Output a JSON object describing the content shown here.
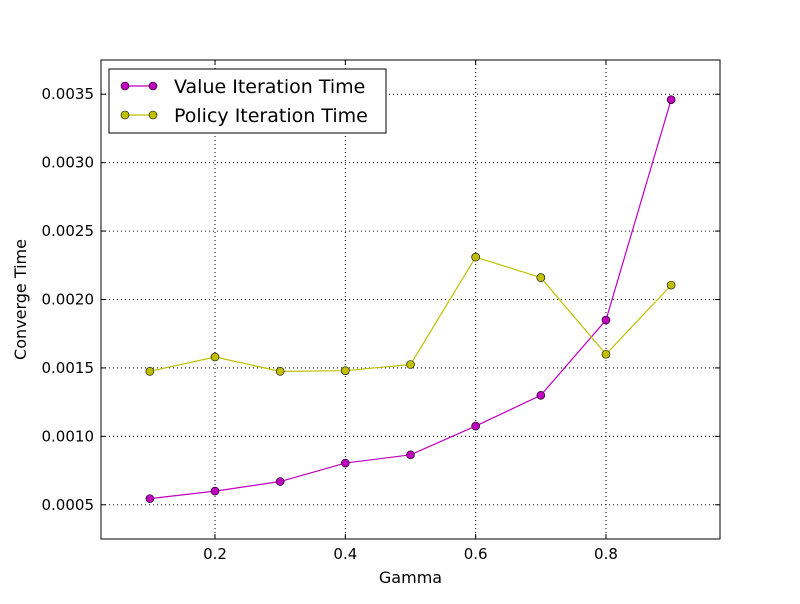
{
  "chart_data": {
    "type": "line",
    "title": "",
    "xlabel": "Gamma",
    "ylabel": "Converge Time",
    "xlim": [
      0.025,
      0.975
    ],
    "ylim": [
      0.00025,
      0.00375
    ],
    "x_ticks": [
      0.2,
      0.4,
      0.6,
      0.8
    ],
    "x_tick_labels": [
      "0.2",
      "0.4",
      "0.6",
      "0.8"
    ],
    "y_ticks": [
      0.0005,
      0.001,
      0.0015,
      0.002,
      0.0025,
      0.003,
      0.0035
    ],
    "y_tick_labels": [
      "0.0005",
      "0.0010",
      "0.0015",
      "0.0020",
      "0.0025",
      "0.0030",
      "0.0035"
    ],
    "grid": true,
    "legend_position": "top-left",
    "x": [
      0.1,
      0.2,
      0.3,
      0.4,
      0.5,
      0.6,
      0.7,
      0.8,
      0.9
    ],
    "series": [
      {
        "name": "Value Iteration Time",
        "color": "#bf00bf",
        "values": [
          0.000545,
          0.0006,
          0.00067,
          0.000805,
          0.000865,
          0.001075,
          0.0013,
          0.00185,
          0.00346
        ]
      },
      {
        "name": "Policy Iteration Time",
        "color": "#bfbf00",
        "values": [
          0.001475,
          0.00158,
          0.001475,
          0.00148,
          0.001525,
          0.00231,
          0.00216,
          0.0016,
          0.002105
        ]
      }
    ]
  }
}
